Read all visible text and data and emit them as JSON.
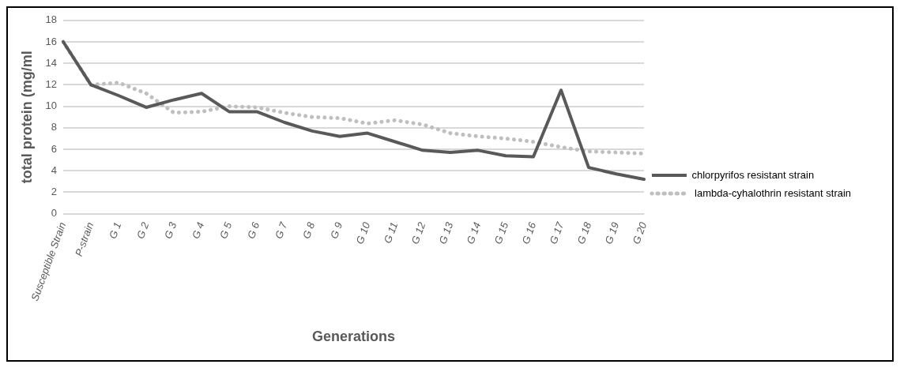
{
  "chart_data": {
    "type": "line",
    "xlabel": "Generations",
    "ylabel": "total protein (mg/ml",
    "categories": [
      "Susceptible Strain",
      "P-strain",
      "G 1",
      "G 2",
      "G 3",
      "G 4",
      "G 5",
      "G 6",
      "G 7",
      "G 8",
      "G 9",
      "G 10",
      "G 11",
      "G 12",
      "G 13",
      "G 14",
      "G 15",
      "G 16",
      "G 17",
      "G 18",
      "G 19",
      "G 20"
    ],
    "series": [
      {
        "name": "chlorpyrifos resistant strain",
        "color": "#595959",
        "line_style": "solid",
        "values": [
          16,
          12,
          11,
          9.9,
          10.6,
          11.2,
          9.5,
          9.5,
          8.5,
          7.7,
          7.2,
          7.5,
          6.7,
          5.9,
          5.7,
          5.9,
          5.4,
          5.3,
          11.5,
          4.3,
          3.7,
          3.2
        ]
      },
      {
        "name": " lambda-cyhalothrin resistant strain",
        "color": "#bfbfbf",
        "line_style": "dotted",
        "values": [
          16,
          12,
          12.2,
          11.2,
          9.4,
          9.5,
          10,
          9.9,
          9.4,
          9,
          8.9,
          8.4,
          8.7,
          8.3,
          7.5,
          7.2,
          7,
          6.7,
          6.2,
          5.8,
          5.7,
          5.6
        ]
      }
    ],
    "ylim": [
      0,
      18
    ],
    "yticks": [
      0,
      2,
      4,
      6,
      8,
      10,
      12,
      14,
      16,
      18
    ],
    "grid": "y",
    "legend": "right",
    "marker": "none"
  }
}
